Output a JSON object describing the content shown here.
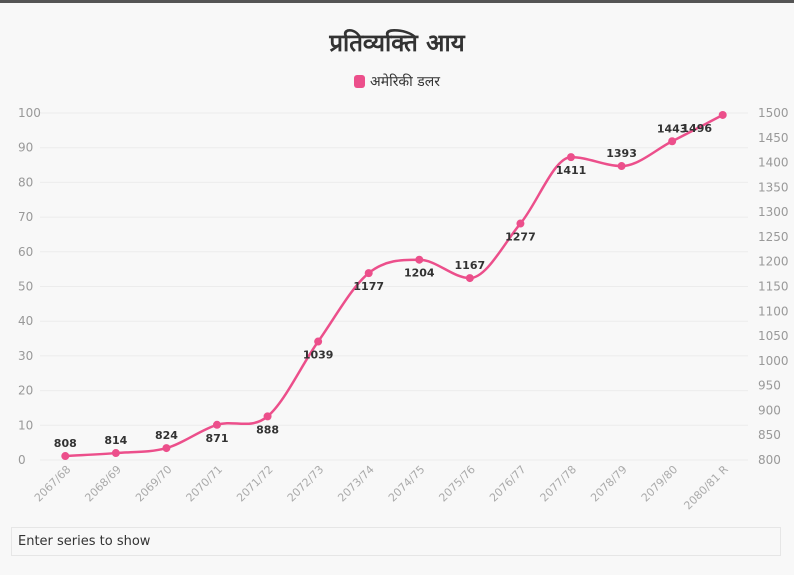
{
  "title": "प्रतिव्यक्ति आय",
  "legend": {
    "label": "अमेरिकी डलर",
    "color": "#ec4f8b"
  },
  "series_input": {
    "placeholder": "Enter series to show"
  },
  "chart_data": {
    "type": "line",
    "title": "प्रतिव्यक्ति आय",
    "categories": [
      "2067/68",
      "2068/69",
      "2069/70",
      "2070/71",
      "2071/72",
      "2072/73",
      "2073/74",
      "2074/75",
      "2075/76",
      "2076/77",
      "2077/78",
      "2078/79",
      "2079/80",
      "2080/81 R"
    ],
    "series": [
      {
        "name": "अमेरिकी डलर",
        "axis": "right",
        "color": "#ec4f8b",
        "values": [
          808,
          814,
          824,
          871,
          888,
          1039,
          1177,
          1204,
          1167,
          1277,
          1411,
          1393,
          1443,
          1496
        ]
      }
    ],
    "left_axis": {
      "ticks": [
        "0",
        "10",
        "20",
        "30",
        "40",
        "50",
        "60",
        "70",
        "80",
        "90",
        "100"
      ],
      "ylim": [
        0,
        100
      ]
    },
    "right_axis": {
      "ticks": [
        "800",
        "850",
        "900",
        "950",
        "1000",
        "1050",
        "1100",
        "1150",
        "1200",
        "1250",
        "1300",
        "1350",
        "1400",
        "1450",
        "1500"
      ],
      "ylim": [
        800,
        1500
      ]
    },
    "grid": true,
    "legend_position": "top-center"
  }
}
